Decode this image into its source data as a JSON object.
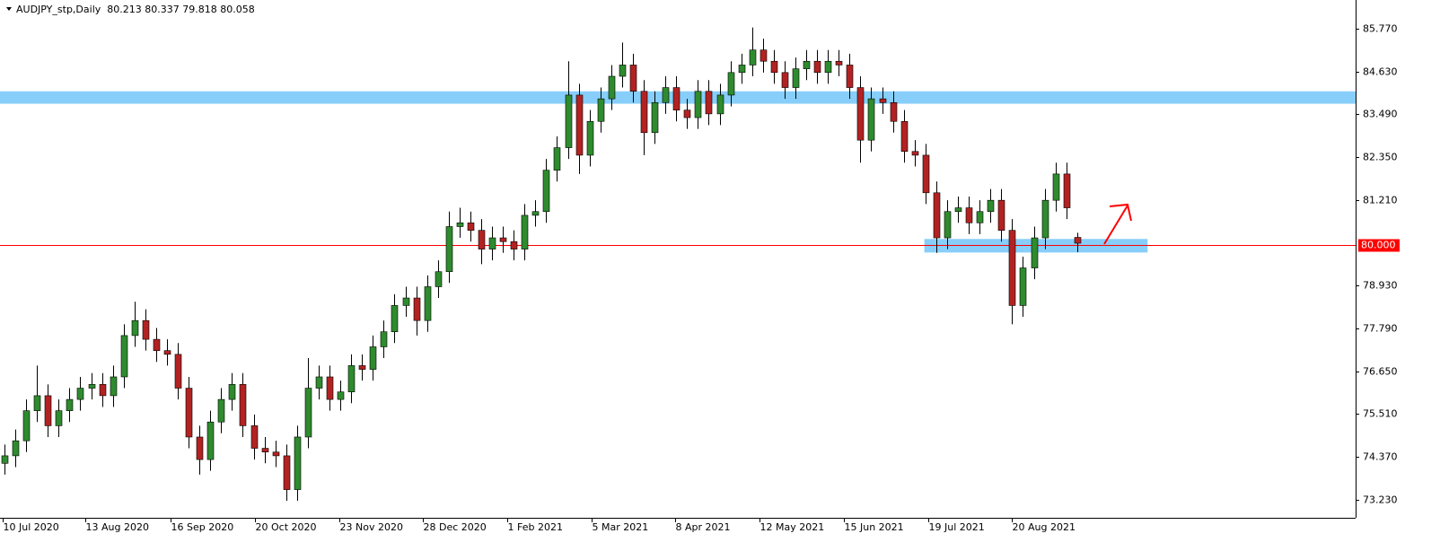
{
  "chart_data": {
    "type": "candlestick",
    "title": "AUDJPY_stp,Daily  80.213 80.337 79.818 80.058",
    "up_color": "#2e8b2e",
    "down_color": "#b22222",
    "wick_color": "#000000",
    "open": [
      74.2,
      74.4,
      74.8,
      75.6,
      76.0,
      75.2,
      75.6,
      75.9,
      76.2,
      76.3,
      76.0,
      76.5,
      77.6,
      78.0,
      77.5,
      77.2,
      77.1,
      76.2,
      74.9,
      74.3,
      75.3,
      75.9,
      76.3,
      75.2,
      74.6,
      74.5,
      74.4,
      73.5,
      74.9,
      76.2,
      76.5,
      75.9,
      76.1,
      76.8,
      76.7,
      77.3,
      77.7,
      78.4,
      78.6,
      78.0,
      78.9,
      79.3,
      80.5,
      80.6,
      80.4,
      79.9,
      80.2,
      80.1,
      79.9,
      80.8,
      80.9,
      82.0,
      82.6,
      84.0,
      82.4,
      83.3,
      83.9,
      84.5,
      84.8,
      84.1,
      83.0,
      83.8,
      84.2,
      83.6,
      83.4,
      84.1,
      83.5,
      84.0,
      84.6,
      84.8,
      85.2,
      84.9,
      84.6,
      84.2,
      84.7,
      84.9,
      84.6,
      84.9,
      84.8,
      84.2,
      82.8,
      83.9,
      83.8,
      83.3,
      82.5,
      82.4,
      81.4,
      80.2,
      80.9,
      81.0,
      80.6,
      80.9,
      81.2,
      80.4,
      78.4,
      79.4,
      80.2,
      81.2,
      81.9,
      80.213
    ],
    "high": [
      74.7,
      75.1,
      75.9,
      76.8,
      76.3,
      75.9,
      76.2,
      76.5,
      76.6,
      76.6,
      76.8,
      77.9,
      78.5,
      78.3,
      77.8,
      77.5,
      77.4,
      76.5,
      75.2,
      75.6,
      76.2,
      76.6,
      76.6,
      75.5,
      74.9,
      74.8,
      74.7,
      75.2,
      77.0,
      76.8,
      76.8,
      76.4,
      77.1,
      77.1,
      77.6,
      78.0,
      78.7,
      78.9,
      78.9,
      79.2,
      79.6,
      80.9,
      81.0,
      80.9,
      80.7,
      80.5,
      80.5,
      80.4,
      81.1,
      81.2,
      82.3,
      82.9,
      84.9,
      84.3,
      83.6,
      84.2,
      84.8,
      85.4,
      85.1,
      84.4,
      84.1,
      84.5,
      84.5,
      83.9,
      84.4,
      84.4,
      84.3,
      84.9,
      85.1,
      85.8,
      85.5,
      85.2,
      84.9,
      85.0,
      85.2,
      85.2,
      85.2,
      85.2,
      85.1,
      84.5,
      84.2,
      84.2,
      84.1,
      83.6,
      82.8,
      82.7,
      81.7,
      81.2,
      81.3,
      81.3,
      81.2,
      81.5,
      81.5,
      80.7,
      79.7,
      80.5,
      81.5,
      82.2,
      82.2,
      80.337
    ],
    "low": [
      73.9,
      74.1,
      74.5,
      75.3,
      74.9,
      74.9,
      75.3,
      75.6,
      75.9,
      75.7,
      75.7,
      76.2,
      77.3,
      77.2,
      76.9,
      76.8,
      75.9,
      74.6,
      73.9,
      74.0,
      75.0,
      75.6,
      74.9,
      74.3,
      74.2,
      74.1,
      73.2,
      73.2,
      74.6,
      75.9,
      75.6,
      75.6,
      75.8,
      76.4,
      76.4,
      77.0,
      77.4,
      78.1,
      77.6,
      77.7,
      78.6,
      79.0,
      80.2,
      80.1,
      79.5,
      79.6,
      79.8,
      79.6,
      79.6,
      80.5,
      80.6,
      81.7,
      82.3,
      81.9,
      82.1,
      83.0,
      83.6,
      84.2,
      83.8,
      82.4,
      82.7,
      83.5,
      83.3,
      83.1,
      83.1,
      83.2,
      83.2,
      83.7,
      84.3,
      84.5,
      84.6,
      84.3,
      83.9,
      83.9,
      84.4,
      84.3,
      84.3,
      84.5,
      83.9,
      82.2,
      82.5,
      83.5,
      83.0,
      82.2,
      82.1,
      81.1,
      79.8,
      79.9,
      80.6,
      80.3,
      80.3,
      80.6,
      80.1,
      77.9,
      78.1,
      79.1,
      79.9,
      80.9,
      80.7,
      79.818
    ],
    "close": [
      74.4,
      74.8,
      75.6,
      76.0,
      75.2,
      75.6,
      75.9,
      76.2,
      76.3,
      76.0,
      76.5,
      77.6,
      78.0,
      77.5,
      77.2,
      77.1,
      76.2,
      74.9,
      74.3,
      75.3,
      75.9,
      76.3,
      75.2,
      74.6,
      74.5,
      74.4,
      73.5,
      74.9,
      76.2,
      76.5,
      75.9,
      76.1,
      76.8,
      76.7,
      77.3,
      77.7,
      78.4,
      78.6,
      78.0,
      78.9,
      79.3,
      80.5,
      80.6,
      80.4,
      79.9,
      80.2,
      80.1,
      79.9,
      80.8,
      80.9,
      82.0,
      82.6,
      84.0,
      82.4,
      83.3,
      83.9,
      84.5,
      84.8,
      84.1,
      83.0,
      83.8,
      84.2,
      83.6,
      83.4,
      84.1,
      83.5,
      84.0,
      84.6,
      84.8,
      85.2,
      84.9,
      84.6,
      84.2,
      84.7,
      84.9,
      84.6,
      84.9,
      84.8,
      84.2,
      82.8,
      83.9,
      83.8,
      83.3,
      82.5,
      82.4,
      81.4,
      80.2,
      80.9,
      81.0,
      80.6,
      80.9,
      81.2,
      80.4,
      78.4,
      79.4,
      80.2,
      81.2,
      81.9,
      81.0,
      80.058
    ],
    "xlim": [
      -0.41,
      124.7
    ],
    "xticks": [
      {
        "value": -0.2,
        "label": "10 Jul 2020"
      },
      {
        "value": 7.5,
        "label": "13 Aug 2020"
      },
      {
        "value": 15.3,
        "label": "16 Sep 2020"
      },
      {
        "value": 23.1,
        "label": "20 Oct 2020"
      },
      {
        "value": 30.9,
        "label": "23 Nov 2020"
      },
      {
        "value": 38.6,
        "label": "28 Dec 2020"
      },
      {
        "value": 46.4,
        "label": "1 Feb 2021"
      },
      {
        "value": 54.2,
        "label": "5 Mar 2021"
      },
      {
        "value": 61.9,
        "label": "8 Apr 2021"
      },
      {
        "value": 69.7,
        "label": "12 May 2021"
      },
      {
        "value": 77.5,
        "label": "15 Jun 2021"
      },
      {
        "value": 85.3,
        "label": "19 Jul 2021"
      },
      {
        "value": 93.0,
        "label": "20 Aug 2021"
      }
    ],
    "ylim": [
      72.75,
      86.53
    ],
    "yticks": [
      {
        "value": 85.77,
        "label": "85.770"
      },
      {
        "value": 84.63,
        "label": "84.630"
      },
      {
        "value": 83.49,
        "label": "83.490"
      },
      {
        "value": 82.35,
        "label": "82.350"
      },
      {
        "value": 81.21,
        "label": "81.210"
      },
      {
        "value": 78.93,
        "label": "78.930"
      },
      {
        "value": 77.79,
        "label": "77.790"
      },
      {
        "value": 76.65,
        "label": "76.650"
      },
      {
        "value": 75.51,
        "label": "75.510"
      },
      {
        "value": 74.37,
        "label": "74.370"
      },
      {
        "value": 73.23,
        "label": "73.230"
      }
    ],
    "hline": {
      "value": 80,
      "label": "80.000",
      "color": "#ff0000"
    },
    "zones": [
      {
        "from": 83.77,
        "to": 84.1,
        "color": "#87cefa"
      },
      {
        "from": 79.81,
        "to": 80.17,
        "x_from": 84.9,
        "x_to": 105.5,
        "color": "#87cefa"
      }
    ]
  }
}
